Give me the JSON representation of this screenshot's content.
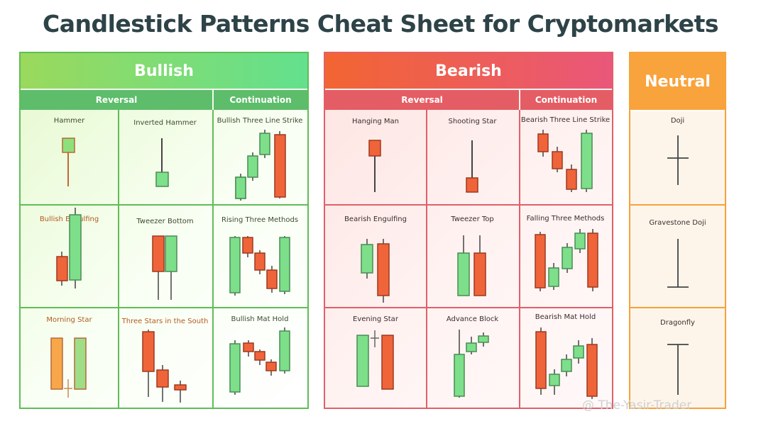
{
  "title": "Candlestick Patterns Cheat Sheet for Cryptomarkets",
  "colors": {
    "bull_candle": "#6fdc8c",
    "bear_candle": "#f0643a",
    "doji": "#444444"
  },
  "bullish": {
    "header": "Bullish",
    "sub_reversal": "Reversal",
    "sub_continuation": "Continuation",
    "patterns": [
      "Hammer",
      "Inverted Hammer",
      "Bullish Three Line Strike",
      "Bullish Engulfing",
      "Tweezer Bottom",
      "Rising Three Methods",
      "Morning Star",
      "Three Stars in the South",
      "Bullish Mat Hold"
    ]
  },
  "bearish": {
    "header": "Bearish",
    "sub_reversal": "Reversal",
    "sub_continuation": "Continuation",
    "patterns": [
      "Hanging Man",
      "Shooting Star",
      "Bearish Three Line Strike",
      "Bearish Engulfing",
      "Tweezer Top",
      "Falling Three Methods",
      "Evening Star",
      "Advance Block",
      "Bearish Mat Hold"
    ]
  },
  "neutral": {
    "header": "Neutral",
    "patterns": [
      "Doji",
      "Gravestone Doji",
      "Dragonfly"
    ]
  },
  "watermark": "@ The-Yasir-Trader"
}
